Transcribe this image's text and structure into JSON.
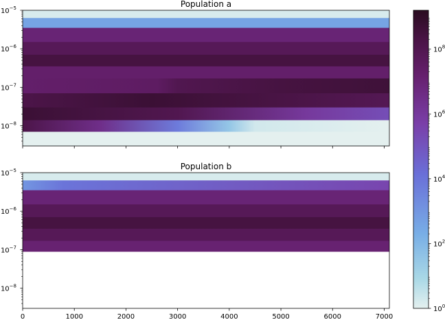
{
  "chart_data": [
    {
      "type": "heatmap",
      "title": "Population a",
      "xlabel": "",
      "ylabel": "",
      "xlim": [
        0,
        7100
      ],
      "y_scale": "log",
      "ylim": [
        3e-09,
        1e-05
      ],
      "y_ticks": [
        {
          "value": 1e-05,
          "base": "10",
          "exp": "−5"
        },
        {
          "value": 1e-06,
          "base": "10",
          "exp": "−6"
        },
        {
          "value": 1e-07,
          "base": "10",
          "exp": "−7"
        },
        {
          "value": 1e-08,
          "base": "10",
          "exp": "−8"
        }
      ],
      "x_tick_labels_shown": false,
      "bands": [
        {
          "y_range": [
            6.3e-06,
            1e-05
          ],
          "log10_value": [
            [
              0,
              0.2
            ],
            [
              7100,
              0.2
            ]
          ]
        },
        {
          "y_range": [
            3.5e-06,
            6.3e-06
          ],
          "log10_value": [
            [
              0,
              2.6
            ],
            [
              7100,
              2.6
            ]
          ]
        },
        {
          "y_range": [
            1.5e-06,
            3.5e-06
          ],
          "log10_value": [
            [
              0,
              7.0
            ],
            [
              7100,
              7.0
            ]
          ]
        },
        {
          "y_range": [
            7e-07,
            1.5e-06
          ],
          "log10_value": [
            [
              0,
              7.8
            ],
            [
              7100,
              7.8
            ]
          ]
        },
        {
          "y_range": [
            3.5e-07,
            7e-07
          ],
          "log10_value": [
            [
              0,
              8.4
            ],
            [
              7100,
              8.4
            ]
          ]
        },
        {
          "y_range": [
            1.7e-07,
            3.5e-07
          ],
          "log10_value": [
            [
              0,
              7.3
            ],
            [
              7100,
              7.3
            ]
          ]
        },
        {
          "y_range": [
            7e-08,
            1.7e-07
          ],
          "log10_value": [
            [
              0,
              7.3
            ],
            [
              2600,
              7.5
            ],
            [
              3000,
              8.0
            ],
            [
              5000,
              8.4
            ],
            [
              7100,
              8.6
            ]
          ]
        },
        {
          "y_range": [
            3e-08,
            7e-08
          ],
          "log10_value": [
            [
              0,
              8.2
            ],
            [
              2500,
              8.7
            ],
            [
              5000,
              8.3
            ],
            [
              7100,
              7.9
            ]
          ]
        },
        {
          "y_range": [
            1.4e-08,
            3e-08
          ],
          "log10_value": [
            [
              0,
              8.7
            ],
            [
              3000,
              8.0
            ],
            [
              5500,
              6.0
            ],
            [
              7100,
              5.2
            ]
          ]
        },
        {
          "y_range": [
            7e-09,
            1.4e-08
          ],
          "log10_value": [
            [
              0,
              8.2
            ],
            [
              1500,
              6.5
            ],
            [
              3000,
              3.8
            ],
            [
              4000,
              1.5
            ],
            [
              4500,
              0.3
            ],
            [
              7100,
              0.0
            ]
          ]
        },
        {
          "y_range": [
            3e-09,
            7e-09
          ],
          "log10_value": [
            [
              0,
              0.0
            ],
            [
              7100,
              0.0
            ]
          ]
        }
      ]
    },
    {
      "type": "heatmap",
      "title": "Population b",
      "xlabel": "",
      "ylabel": "",
      "xlim": [
        0,
        7100
      ],
      "y_scale": "log",
      "ylim": [
        3e-09,
        1e-05
      ],
      "y_ticks": [
        {
          "value": 1e-05,
          "base": "10",
          "exp": "−5"
        },
        {
          "value": 1e-06,
          "base": "10",
          "exp": "−6"
        },
        {
          "value": 1e-07,
          "base": "10",
          "exp": "−7"
        },
        {
          "value": 1e-08,
          "base": "10",
          "exp": "−8"
        }
      ],
      "x_ticks": [
        0,
        1000,
        2000,
        3000,
        4000,
        5000,
        6000,
        7000
      ],
      "x_tick_labels": [
        "0",
        "1000",
        "2000",
        "3000",
        "4000",
        "5000",
        "6000",
        "7000"
      ],
      "bands": [
        {
          "y_range": [
            6.3e-06,
            1e-05
          ],
          "log10_value": [
            [
              0,
              0.2
            ],
            [
              7100,
              0.2
            ]
          ]
        },
        {
          "y_range": [
            3.5e-06,
            6.3e-06
          ],
          "log10_value": [
            [
              0,
              3.0
            ],
            [
              800,
              4.0
            ],
            [
              7100,
              5.5
            ]
          ]
        },
        {
          "y_range": [
            1.5e-06,
            3.5e-06
          ],
          "log10_value": [
            [
              0,
              7.0
            ],
            [
              7100,
              7.0
            ]
          ]
        },
        {
          "y_range": [
            7e-07,
            1.5e-06
          ],
          "log10_value": [
            [
              0,
              7.8
            ],
            [
              7100,
              7.8
            ]
          ]
        },
        {
          "y_range": [
            3.5e-07,
            7e-07
          ],
          "log10_value": [
            [
              0,
              8.4
            ],
            [
              7100,
              8.4
            ]
          ]
        },
        {
          "y_range": [
            1.7e-07,
            3.5e-07
          ],
          "log10_value": [
            [
              0,
              7.8
            ],
            [
              7100,
              7.8
            ]
          ]
        },
        {
          "y_range": [
            9e-08,
            1.7e-07
          ],
          "log10_value": [
            [
              0,
              7.1
            ],
            [
              7100,
              7.1
            ]
          ]
        }
      ]
    }
  ],
  "colorbar": {
    "scale": "log",
    "range_log10": [
      0,
      9.2
    ],
    "ticks": [
      {
        "log10": 0,
        "base": "10",
        "exp": "0"
      },
      {
        "log10": 2,
        "base": "10",
        "exp": "2"
      },
      {
        "log10": 4,
        "base": "10",
        "exp": "4"
      },
      {
        "log10": 6,
        "base": "10",
        "exp": "6"
      },
      {
        "log10": 8,
        "base": "10",
        "exp": "8"
      }
    ],
    "colormap": [
      {
        "t": 0.0,
        "color": "#e4f0ef"
      },
      {
        "t": 0.1,
        "color": "#a9d8e6"
      },
      {
        "t": 0.25,
        "color": "#78aee6"
      },
      {
        "t": 0.45,
        "color": "#6a6fd8"
      },
      {
        "t": 0.62,
        "color": "#7a3fa8"
      },
      {
        "t": 0.78,
        "color": "#66206e"
      },
      {
        "t": 0.9,
        "color": "#4a1446"
      },
      {
        "t": 1.0,
        "color": "#2a0c20"
      }
    ]
  }
}
